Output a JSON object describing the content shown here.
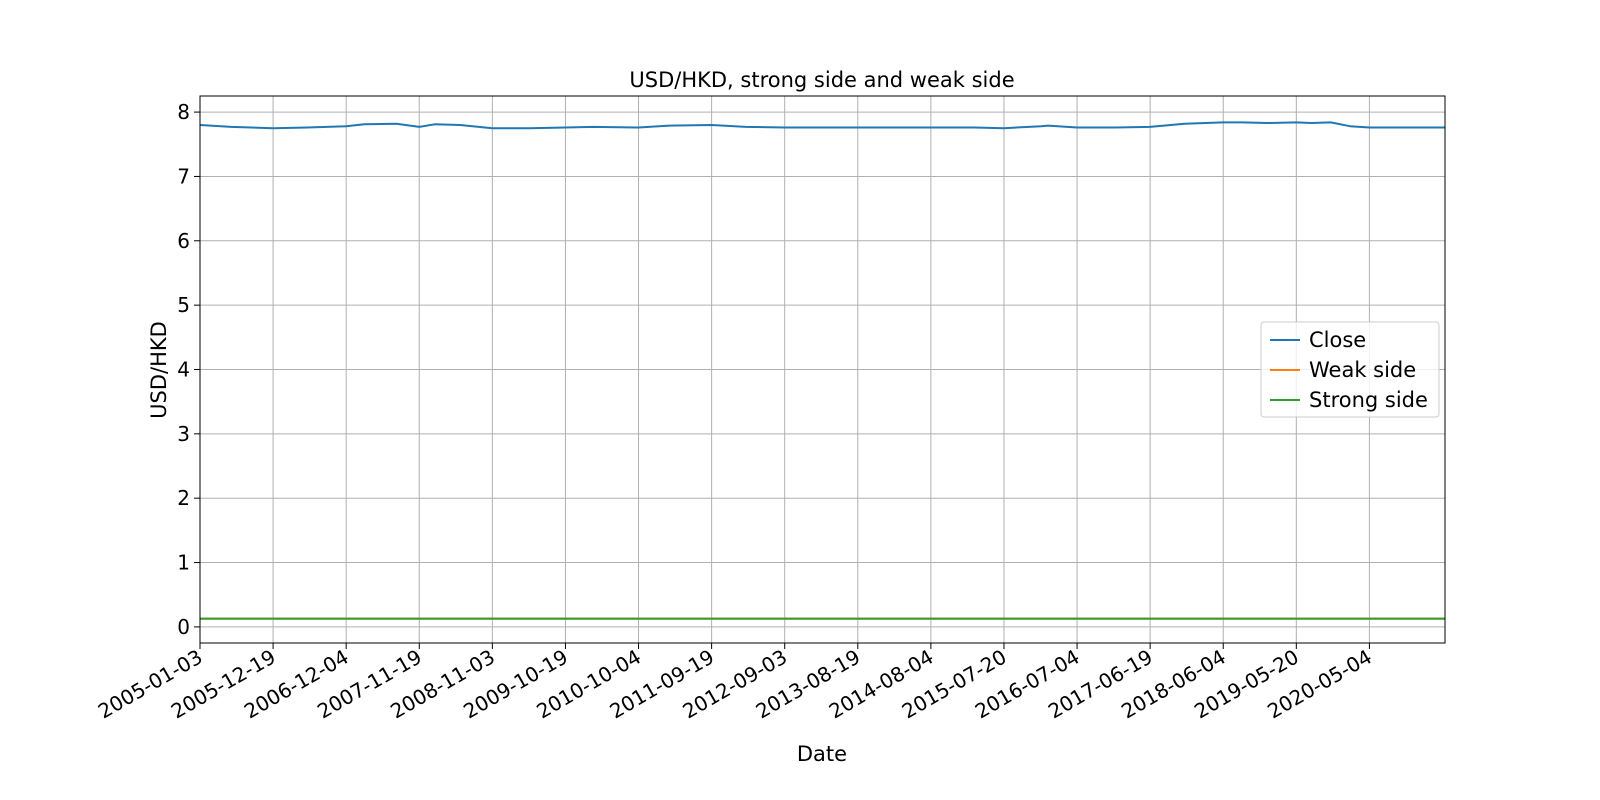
{
  "chart_data": {
    "type": "line",
    "title": "USD/HKD, strong side and weak side",
    "xlabel": "Date",
    "ylabel": "USD/HKD",
    "xlim": [
      "2005-01-03",
      "2021-05-01"
    ],
    "ylim": [
      -0.25,
      8.25
    ],
    "grid": true,
    "legend_position": "center-right",
    "x_ticks": [
      "2005-01-03",
      "2005-12-19",
      "2006-12-04",
      "2007-11-19",
      "2008-11-03",
      "2009-10-19",
      "2010-10-04",
      "2011-09-19",
      "2012-09-03",
      "2013-08-19",
      "2014-08-04",
      "2015-07-20",
      "2016-07-04",
      "2017-06-19",
      "2018-06-04",
      "2019-05-20",
      "2020-05-04"
    ],
    "y_ticks": [
      0,
      1,
      2,
      3,
      4,
      5,
      6,
      7,
      8
    ],
    "series": [
      {
        "name": "Close",
        "color": "#1f77b4",
        "x": [
          "2005-01-03",
          "2005-06-01",
          "2005-12-19",
          "2006-06-01",
          "2006-12-04",
          "2007-03-01",
          "2007-08-01",
          "2007-11-19",
          "2008-02-01",
          "2008-06-01",
          "2008-11-03",
          "2009-05-01",
          "2009-10-19",
          "2010-03-01",
          "2010-10-04",
          "2011-03-01",
          "2011-09-19",
          "2012-03-01",
          "2012-09-03",
          "2013-03-01",
          "2013-08-19",
          "2014-03-01",
          "2014-08-04",
          "2015-03-01",
          "2015-07-20",
          "2016-01-15",
          "2016-02-15",
          "2016-07-04",
          "2017-01-01",
          "2017-06-19",
          "2017-12-01",
          "2018-06-04",
          "2018-09-01",
          "2019-01-01",
          "2019-05-20",
          "2019-08-01",
          "2019-11-01",
          "2020-02-01",
          "2020-05-04",
          "2021-05-01"
        ],
        "values": [
          7.8,
          7.77,
          7.75,
          7.76,
          7.78,
          7.81,
          7.82,
          7.77,
          7.81,
          7.8,
          7.75,
          7.75,
          7.76,
          7.77,
          7.76,
          7.79,
          7.8,
          7.77,
          7.76,
          7.76,
          7.76,
          7.76,
          7.76,
          7.76,
          7.75,
          7.78,
          7.79,
          7.76,
          7.76,
          7.77,
          7.82,
          7.84,
          7.84,
          7.83,
          7.84,
          7.83,
          7.84,
          7.78,
          7.76,
          7.76
        ]
      },
      {
        "name": "Weak side",
        "color": "#ff7f0e",
        "x": [
          "2005-01-03",
          "2021-05-01"
        ],
        "values": [
          0.128,
          0.128
        ]
      },
      {
        "name": "Strong side",
        "color": "#2ca02c",
        "x": [
          "2005-01-03",
          "2021-05-01"
        ],
        "values": [
          0.129,
          0.129
        ]
      }
    ]
  }
}
